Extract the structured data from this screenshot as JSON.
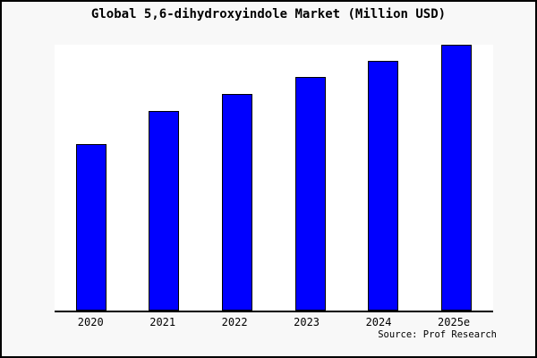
{
  "figure": {
    "background_color": "#f8f8f8",
    "border_color": "#000000",
    "plot_background_color": "#ffffff"
  },
  "chart_data": {
    "type": "bar",
    "title": "Global 5,6-dihydroxyindole Market (Million USD)",
    "categories": [
      "2020",
      "2021",
      "2022",
      "2023",
      "2024",
      "2025e"
    ],
    "values": [
      186,
      223,
      242,
      261,
      279,
      297
    ],
    "values_note": "y-axis has no tick labels or gridlines; values are relative bar heights (pixels) measured from the axis baseline",
    "xlabel": "",
    "ylabel": "",
    "grid": false,
    "legend": null,
    "bar_color": "#0000ff",
    "bar_edge_color": "#000000",
    "source": "Source: Prof Research"
  }
}
